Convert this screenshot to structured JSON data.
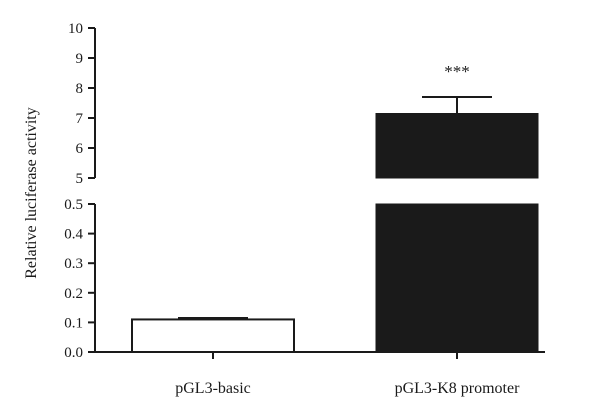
{
  "chart_data": {
    "type": "bar",
    "ylabel": "Relative luciferase activity",
    "xlabel": "",
    "categories": [
      "pGL3-basic",
      "pGL3-K8 promoter"
    ],
    "values": [
      0.11,
      7.15
    ],
    "error_bars": [
      0.005,
      0.55
    ],
    "bar_colors": [
      "#ffffff",
      "#1a1a1a"
    ],
    "bar_stroke": "#1a1a1a",
    "annotations": [
      {
        "category": "pGL3-K8 promoter",
        "text": "***"
      }
    ],
    "broken_y_axis": true,
    "ylim_lower": [
      0,
      0.5
    ],
    "ylim_upper": [
      5,
      10
    ],
    "yticks_lower": [
      "0.0",
      "0.1",
      "0.2",
      "0.3",
      "0.4",
      "0.5"
    ],
    "yticks_upper": [
      "5",
      "6",
      "7",
      "8",
      "9",
      "10"
    ],
    "grid": false,
    "legend": "none"
  }
}
